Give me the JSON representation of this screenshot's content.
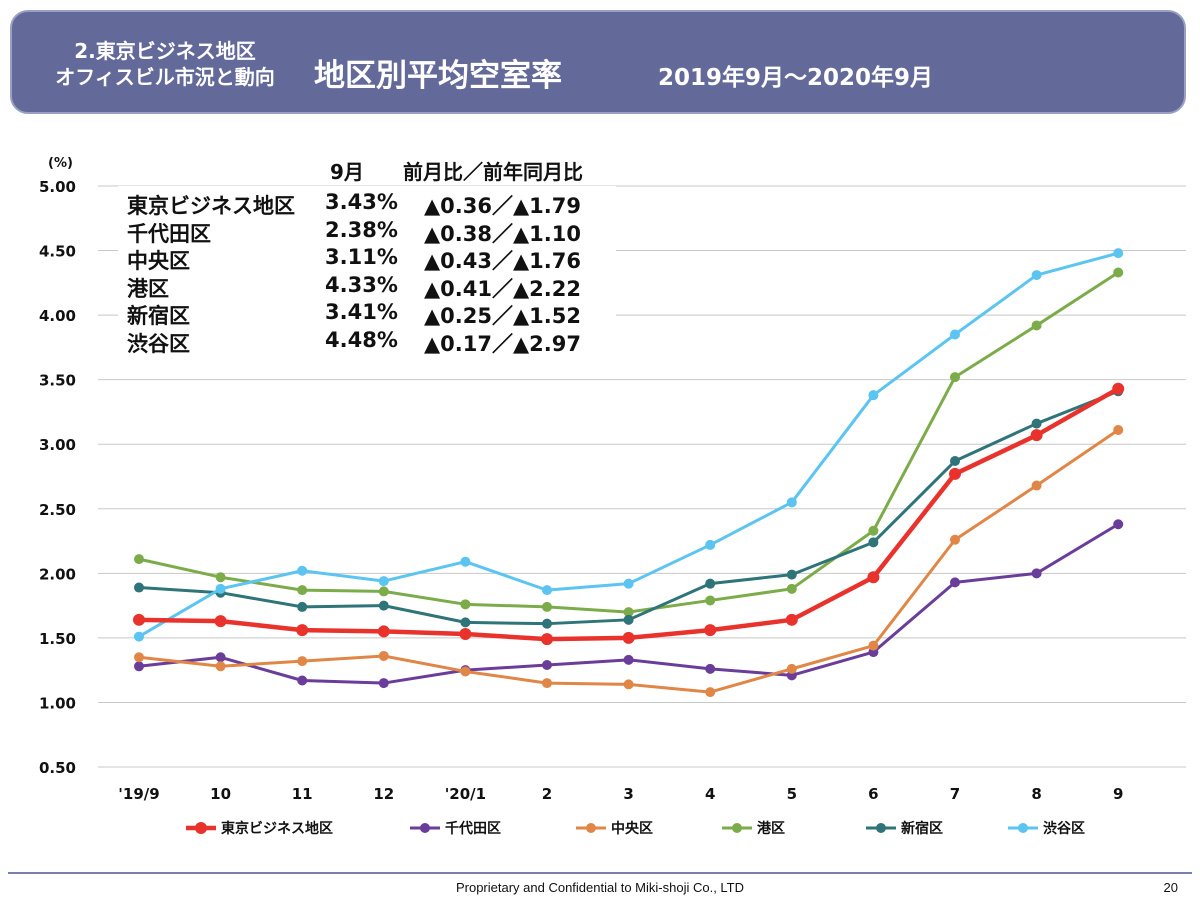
{
  "header": {
    "section_line1": "2.東京ビジネス地区",
    "section_line2": "オフィスビル市況と動向",
    "title": "地区別平均空室率",
    "period": "2019年9月～2020年9月"
  },
  "summary": {
    "col_month": "9月",
    "col_change": "前月比／前年同月比",
    "rows": [
      {
        "name": "東京ビジネス地区",
        "value": "3.43%",
        "change": "▲0.36／▲1.79"
      },
      {
        "name": "千代田区",
        "value": "2.38%",
        "change": "▲0.38／▲1.10"
      },
      {
        "name": "中央区",
        "value": "3.11%",
        "change": "▲0.43／▲1.76"
      },
      {
        "name": "港区",
        "value": "4.33%",
        "change": "▲0.41／▲2.22"
      },
      {
        "name": "新宿区",
        "value": "3.41%",
        "change": "▲0.25／▲1.52"
      },
      {
        "name": "渋谷区",
        "value": "4.48%",
        "change": "▲0.17／▲2.97"
      }
    ]
  },
  "chart_data": {
    "type": "line",
    "title": "地区別平均空室率",
    "ylabel": "(%)",
    "xlabel": "",
    "ylim": [
      0.5,
      5.0
    ],
    "ytick_labels": [
      "5.00",
      "4.50",
      "4.00",
      "3.50",
      "3.00",
      "2.50",
      "2.00",
      "1.50",
      "1.00",
      "0.50"
    ],
    "ytick_values": [
      5.0,
      4.5,
      4.0,
      3.5,
      3.0,
      2.5,
      2.0,
      1.5,
      1.0,
      0.5
    ],
    "categories": [
      "'19/9",
      "10",
      "11",
      "12",
      "'20/1",
      "2",
      "3",
      "4",
      "5",
      "6",
      "7",
      "8",
      "9"
    ],
    "legend_position": "bottom",
    "series": [
      {
        "name": "東京ビジネス地区",
        "color": "#e8322b",
        "emphasis": true,
        "values": [
          1.64,
          1.63,
          1.56,
          1.55,
          1.53,
          1.49,
          1.5,
          1.56,
          1.64,
          1.97,
          2.77,
          3.07,
          3.43
        ]
      },
      {
        "name": "千代田区",
        "color": "#6a3d9a",
        "emphasis": false,
        "values": [
          1.28,
          1.35,
          1.17,
          1.15,
          1.25,
          1.29,
          1.33,
          1.26,
          1.21,
          1.39,
          1.93,
          2.0,
          2.38
        ]
      },
      {
        "name": "中央区",
        "color": "#e08646",
        "emphasis": false,
        "values": [
          1.35,
          1.28,
          1.32,
          1.36,
          1.24,
          1.15,
          1.14,
          1.08,
          1.26,
          1.44,
          2.26,
          2.68,
          3.11
        ]
      },
      {
        "name": "港区",
        "color": "#7cab4a",
        "emphasis": false,
        "values": [
          2.11,
          1.97,
          1.87,
          1.86,
          1.76,
          1.74,
          1.7,
          1.79,
          1.88,
          2.33,
          3.52,
          3.92,
          4.33
        ]
      },
      {
        "name": "新宿区",
        "color": "#2e7478",
        "emphasis": false,
        "values": [
          1.89,
          1.85,
          1.74,
          1.75,
          1.62,
          1.61,
          1.64,
          1.92,
          1.99,
          2.24,
          2.87,
          3.16,
          3.41
        ]
      },
      {
        "name": "渋谷区",
        "color": "#5bc4f1",
        "emphasis": false,
        "values": [
          1.51,
          1.88,
          2.02,
          1.94,
          2.09,
          1.87,
          1.92,
          2.22,
          2.55,
          3.38,
          3.85,
          4.31,
          4.48
        ]
      }
    ]
  },
  "footer": {
    "text": "Proprietary and Confidential to Miki-shoji Co., LTD",
    "page": "20"
  }
}
